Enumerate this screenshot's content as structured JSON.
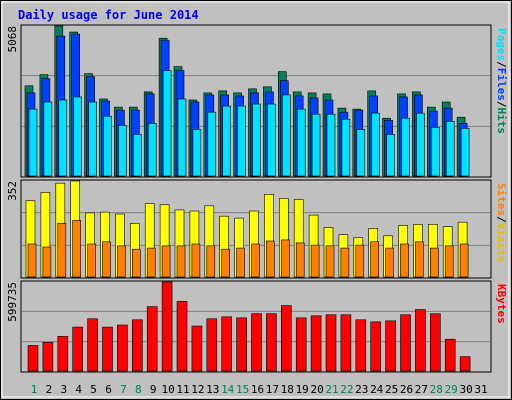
{
  "chart_data": [
    {
      "type": "bar",
      "title": "Daily usage for June 2014",
      "separator": "/",
      "ylim": [
        0,
        5068
      ],
      "yticks": [
        5068
      ],
      "series": [
        {
          "name": "Hits",
          "color": "#00805c",
          "values": [
            3047,
            3424,
            5068,
            4863,
            3458,
            2602,
            2328,
            2328,
            2842,
            4657,
            3698,
            2568,
            2808,
            2876,
            2808,
            2945,
            3013,
            3527,
            2842,
            2808,
            2774,
            2294,
            2260,
            2876,
            1952,
            2774,
            2842,
            2328,
            2500,
            1986,
            0
          ]
        },
        {
          "name": "Files",
          "color": "#0040ff",
          "values": [
            2808,
            3287,
            4726,
            4794,
            3356,
            2534,
            2226,
            2226,
            2774,
            4589,
            3561,
            2500,
            2739,
            2739,
            2705,
            2808,
            2842,
            3219,
            2705,
            2637,
            2568,
            2157,
            2226,
            2705,
            1883,
            2671,
            2739,
            2192,
            2294,
            1781,
            0
          ]
        },
        {
          "name": "Pages",
          "color": "#00e0ff",
          "values": [
            2260,
            2500,
            2568,
            2671,
            2500,
            2020,
            1712,
            1404,
            1781,
            3561,
            2602,
            1575,
            2157,
            2363,
            2363,
            2431,
            2431,
            2739,
            2260,
            2089,
            2089,
            1918,
            1575,
            2123,
            1404,
            1952,
            2123,
            1644,
            1849,
            1609,
            0
          ]
        }
      ]
    },
    {
      "type": "bar",
      "ylim": [
        0,
        352
      ],
      "yticks": [
        352
      ],
      "separator": "/",
      "series": [
        {
          "name": "Visits",
          "color": "#ffff00",
          "label_color": "#e0c000",
          "values": [
            280,
            310,
            344,
            352,
            235,
            238,
            231,
            197,
            269,
            265,
            246,
            242,
            261,
            223,
            216,
            242,
            303,
            288,
            284,
            227,
            182,
            155,
            144,
            178,
            151,
            189,
            193,
            193,
            185,
            201,
            0
          ]
        },
        {
          "name": "Sites",
          "color": "#ff8000",
          "values": [
            121,
            110,
            197,
            208,
            121,
            129,
            114,
            102,
            106,
            114,
            114,
            121,
            114,
            102,
            106,
            121,
            132,
            136,
            125,
            117,
            114,
            106,
            117,
            129,
            106,
            121,
            129,
            106,
            114,
            121,
            0
          ]
        }
      ]
    },
    {
      "type": "bar",
      "ylim": [
        0,
        599735
      ],
      "yticks": [
        599735
      ],
      "categories": [
        "1",
        "2",
        "3",
        "4",
        "5",
        "6",
        "7",
        "8",
        "9",
        "10",
        "11",
        "12",
        "13",
        "14",
        "15",
        "16",
        "17",
        "18",
        "19",
        "20",
        "21",
        "22",
        "23",
        "24",
        "25",
        "26",
        "27",
        "28",
        "29",
        "30",
        "31"
      ],
      "category_colors": [
        "#00805c",
        "#000000",
        "#000000",
        "#000000",
        "#000000",
        "#000000",
        "#00805c",
        "#00805c",
        "#000000",
        "#000000",
        "#000000",
        "#000000",
        "#000000",
        "#00805c",
        "#00805c",
        "#000000",
        "#000000",
        "#000000",
        "#000000",
        "#000000",
        "#00805c",
        "#00805c",
        "#000000",
        "#000000",
        "#000000",
        "#000000",
        "#000000",
        "#00805c",
        "#00805c",
        "#000000",
        "#000000"
      ],
      "series": [
        {
          "name": "KBytes",
          "color": "#ff0000",
          "values": [
            172000,
            193000,
            234000,
            296000,
            352000,
            296000,
            310000,
            345000,
            434000,
            599735,
            469000,
            303000,
            352000,
            365000,
            358000,
            386000,
            386000,
            441000,
            358000,
            372000,
            379000,
            379000,
            345000,
            331000,
            338000,
            379000,
            414000,
            386000,
            214000,
            97000,
            0
          ]
        }
      ]
    }
  ]
}
